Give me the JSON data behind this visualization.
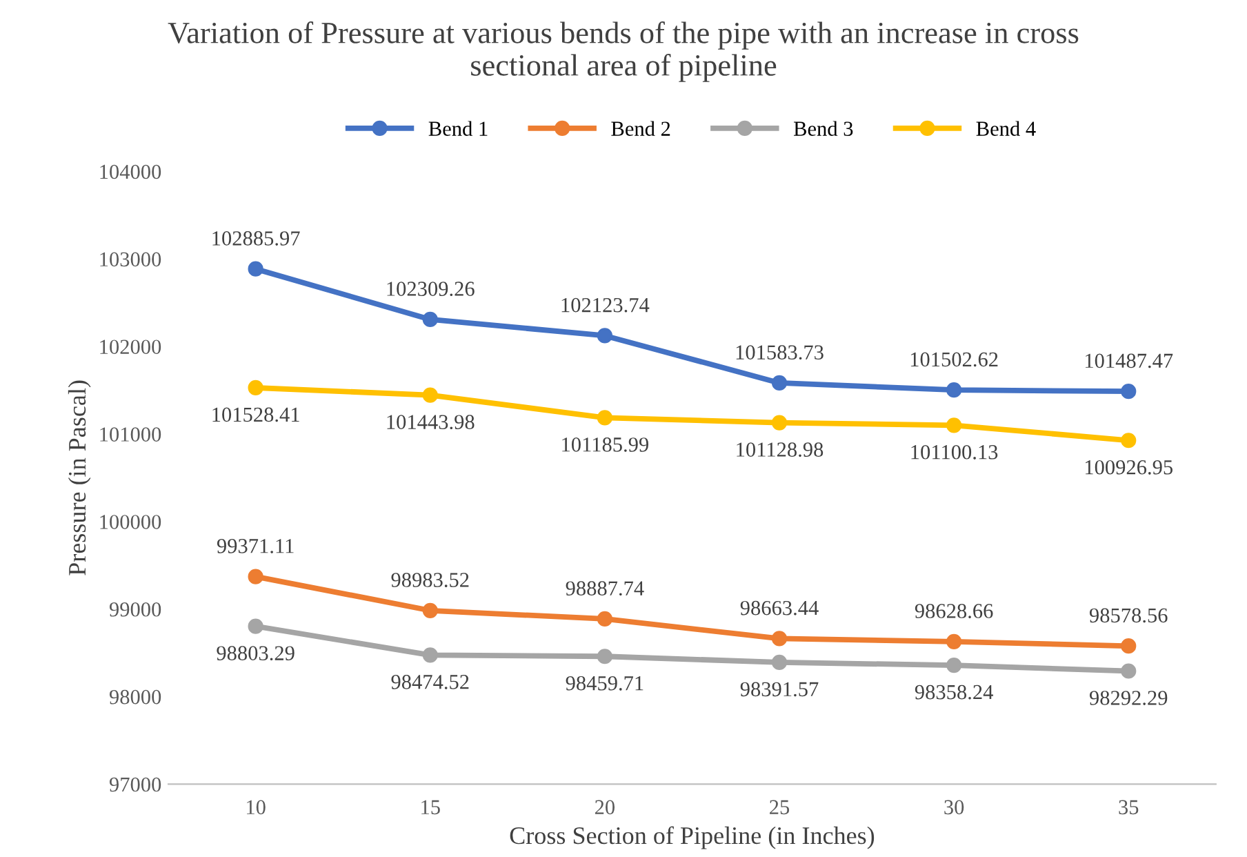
{
  "chart_data": {
    "type": "line",
    "title": "Variation of Pressure at various bends of the pipe with an increase in cross\nsectional area of pipeline",
    "xlabel": "Cross Section of Pipeline (in Inches)",
    "ylabel": "Pressure (in Pascal)",
    "categories": [
      "10",
      "15",
      "20",
      "25",
      "30",
      "35"
    ],
    "series": [
      {
        "name": "Bend 1",
        "color": "#4472c4",
        "values": [
          102885.97,
          102309.26,
          102123.74,
          101583.73,
          101502.62,
          101487.47
        ]
      },
      {
        "name": "Bend 2",
        "color": "#ed7d31",
        "values": [
          99371.11,
          98983.52,
          98887.74,
          98663.44,
          98628.66,
          98578.56
        ]
      },
      {
        "name": "Bend 3",
        "color": "#a5a5a5",
        "values": [
          98803.29,
          98474.52,
          98459.71,
          98391.57,
          98358.24,
          98292.29
        ]
      },
      {
        "name": "Bend 4",
        "color": "#ffc000",
        "values": [
          101528.41,
          101443.98,
          101185.99,
          101128.98,
          101100.13,
          100926.95
        ]
      }
    ],
    "ylim": [
      97000,
      104000
    ],
    "yticks": [
      97000,
      98000,
      99000,
      100000,
      101000,
      102000,
      103000,
      104000
    ],
    "grid": false,
    "legend": "top",
    "marker": "circle",
    "line_style": "solid",
    "data_labels": true
  }
}
